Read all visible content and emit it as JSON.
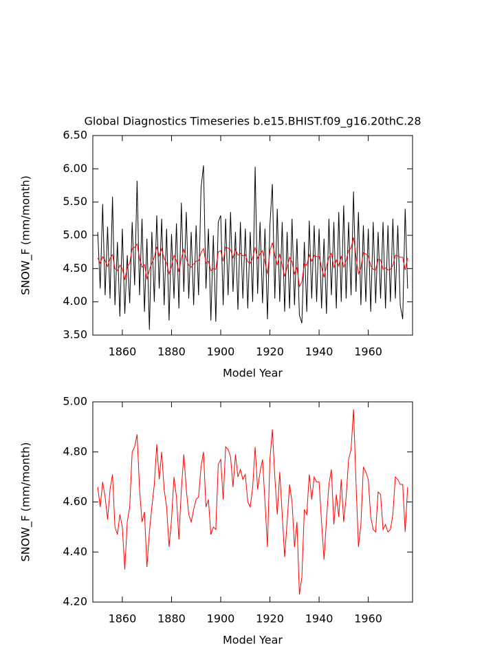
{
  "chart_data": [
    {
      "type": "line",
      "title": "Global Diagnostics Timeseries b.e15.BHIST.f09_g16.20thC.28",
      "xlabel": "Model Year",
      "ylabel": "SNOW_F (mm/month)",
      "xlim": [
        1848,
        1978
      ],
      "xticks": [
        1860,
        1880,
        1900,
        1920,
        1940,
        1960
      ],
      "ylim": [
        3.5,
        6.5
      ],
      "yticks": [
        {
          "value": 3.5,
          "label": "3.50"
        },
        {
          "value": 4.0,
          "label": "4.00"
        },
        {
          "value": 4.5,
          "label": "4.50"
        },
        {
          "value": 5.0,
          "label": "5.00"
        },
        {
          "value": 5.5,
          "label": "5.50"
        },
        {
          "value": 6.0,
          "label": "6.00"
        },
        {
          "value": 6.5,
          "label": "6.50"
        }
      ],
      "x": [
        1850,
        1851,
        1852,
        1853,
        1854,
        1855,
        1856,
        1857,
        1858,
        1859,
        1860,
        1861,
        1862,
        1863,
        1864,
        1865,
        1866,
        1867,
        1868,
        1869,
        1870,
        1871,
        1872,
        1873,
        1874,
        1875,
        1876,
        1877,
        1878,
        1879,
        1880,
        1881,
        1882,
        1883,
        1884,
        1885,
        1886,
        1887,
        1888,
        1889,
        1890,
        1891,
        1892,
        1893,
        1894,
        1895,
        1896,
        1897,
        1898,
        1899,
        1900,
        1901,
        1902,
        1903,
        1904,
        1905,
        1906,
        1907,
        1908,
        1909,
        1910,
        1911,
        1912,
        1913,
        1914,
        1915,
        1916,
        1917,
        1918,
        1919,
        1920,
        1921,
        1922,
        1923,
        1924,
        1925,
        1926,
        1927,
        1928,
        1929,
        1930,
        1931,
        1932,
        1933,
        1934,
        1935,
        1936,
        1937,
        1938,
        1939,
        1940,
        1941,
        1942,
        1943,
        1944,
        1945,
        1946,
        1947,
        1948,
        1949,
        1950,
        1951,
        1952,
        1953,
        1954,
        1955,
        1956,
        1957,
        1958,
        1959,
        1960,
        1961,
        1962,
        1963,
        1964,
        1965,
        1966,
        1967,
        1968,
        1969,
        1970,
        1971,
        1972,
        1973,
        1974,
        1975,
        1976
      ],
      "series": [
        {
          "color": "#000000",
          "values": [
            5.05,
            4.2,
            5.47,
            4.1,
            5.13,
            4.05,
            5.58,
            3.95,
            4.9,
            3.78,
            5.1,
            3.82,
            4.7,
            3.98,
            5.2,
            4.25,
            5.82,
            4.1,
            5.25,
            3.85,
            4.95,
            3.58,
            5.05,
            4.0,
            5.3,
            4.2,
            5.25,
            3.95,
            5.1,
            3.72,
            5.02,
            4.05,
            5.18,
            3.9,
            5.49,
            4.15,
            5.35,
            4.05,
            5.05,
            3.95,
            5.15,
            4.1,
            5.71,
            6.05,
            4.2,
            5.1,
            3.72,
            5.0,
            3.7,
            5.2,
            5.3,
            3.95,
            5.25,
            4.1,
            5.35,
            4.15,
            5.05,
            3.88,
            5.2,
            4.05,
            5.1,
            3.9,
            5.05,
            4.0,
            6.03,
            4.12,
            5.2,
            3.98,
            5.1,
            3.74,
            5.15,
            5.77,
            4.05,
            5.4,
            4.0,
            5.2,
            3.85,
            5.05,
            3.9,
            5.25,
            3.95,
            4.95,
            3.8,
            3.68,
            4.9,
            3.85,
            5.22,
            4.05,
            5.15,
            4.0,
            5.1,
            3.9,
            4.95,
            3.82,
            5.25,
            4.1,
            5.2,
            3.9,
            5.35,
            4.0,
            5.45,
            4.05,
            5.2,
            4.1,
            5.66,
            4.15,
            5.35,
            3.95,
            5.15,
            4.0,
            5.1,
            3.85,
            5.2,
            3.98,
            5.05,
            4.05,
            5.2,
            3.9,
            5.15,
            4.0,
            5.25,
            4.05,
            5.15,
            3.95,
            3.74,
            5.4,
            4.2
          ]
        },
        {
          "color": "#ff0000",
          "values": [
            4.66,
            4.58,
            4.68,
            4.62,
            4.53,
            4.65,
            4.71,
            4.5,
            4.47,
            4.55,
            4.5,
            4.33,
            4.52,
            4.58,
            4.8,
            4.82,
            4.87,
            4.65,
            4.52,
            4.56,
            4.34,
            4.48,
            4.58,
            4.67,
            4.83,
            4.69,
            4.8,
            4.65,
            4.58,
            4.42,
            4.53,
            4.7,
            4.62,
            4.45,
            4.65,
            4.79,
            4.65,
            4.55,
            4.52,
            4.57,
            4.61,
            4.62,
            4.74,
            4.8,
            4.58,
            4.61,
            4.47,
            4.5,
            4.49,
            4.75,
            4.77,
            4.61,
            4.82,
            4.81,
            4.78,
            4.66,
            4.79,
            4.7,
            4.73,
            4.69,
            4.71,
            4.6,
            4.58,
            4.66,
            4.82,
            4.65,
            4.72,
            4.77,
            4.6,
            4.42,
            4.77,
            4.89,
            4.7,
            4.55,
            4.72,
            4.55,
            4.38,
            4.52,
            4.67,
            4.6,
            4.42,
            4.52,
            4.23,
            4.3,
            4.57,
            4.55,
            4.71,
            4.61,
            4.7,
            4.68,
            4.68,
            4.52,
            4.37,
            4.53,
            4.67,
            4.73,
            4.51,
            4.63,
            4.54,
            4.69,
            4.52,
            4.62,
            4.77,
            4.81,
            4.97,
            4.68,
            4.42,
            4.51,
            4.74,
            4.72,
            4.69,
            4.54,
            4.49,
            4.48,
            4.64,
            4.63,
            4.49,
            4.51,
            4.48,
            4.49,
            4.55,
            4.7,
            4.69,
            4.67,
            4.67,
            4.48,
            4.66
          ]
        }
      ]
    },
    {
      "type": "line",
      "xlabel": "Model Year",
      "ylabel": "SNOW_F (mm/month)",
      "xlim": [
        1848,
        1978
      ],
      "xticks": [
        1860,
        1880,
        1900,
        1920,
        1940,
        1960
      ],
      "ylim": [
        4.2,
        5.0
      ],
      "yticks": [
        {
          "value": 4.2,
          "label": "4.20"
        },
        {
          "value": 4.4,
          "label": "4.40"
        },
        {
          "value": 4.6,
          "label": "4.60"
        },
        {
          "value": 4.8,
          "label": "4.80"
        },
        {
          "value": 5.0,
          "label": "5.00"
        }
      ],
      "x": [
        1850,
        1851,
        1852,
        1853,
        1854,
        1855,
        1856,
        1857,
        1858,
        1859,
        1860,
        1861,
        1862,
        1863,
        1864,
        1865,
        1866,
        1867,
        1868,
        1869,
        1870,
        1871,
        1872,
        1873,
        1874,
        1875,
        1876,
        1877,
        1878,
        1879,
        1880,
        1881,
        1882,
        1883,
        1884,
        1885,
        1886,
        1887,
        1888,
        1889,
        1890,
        1891,
        1892,
        1893,
        1894,
        1895,
        1896,
        1897,
        1898,
        1899,
        1900,
        1901,
        1902,
        1903,
        1904,
        1905,
        1906,
        1907,
        1908,
        1909,
        1910,
        1911,
        1912,
        1913,
        1914,
        1915,
        1916,
        1917,
        1918,
        1919,
        1920,
        1921,
        1922,
        1923,
        1924,
        1925,
        1926,
        1927,
        1928,
        1929,
        1930,
        1931,
        1932,
        1933,
        1934,
        1935,
        1936,
        1937,
        1938,
        1939,
        1940,
        1941,
        1942,
        1943,
        1944,
        1945,
        1946,
        1947,
        1948,
        1949,
        1950,
        1951,
        1952,
        1953,
        1954,
        1955,
        1956,
        1957,
        1958,
        1959,
        1960,
        1961,
        1962,
        1963,
        1964,
        1965,
        1966,
        1967,
        1968,
        1969,
        1970,
        1971,
        1972,
        1973,
        1974,
        1975,
        1976
      ],
      "series": [
        {
          "color": "#ff0000",
          "values": [
            4.66,
            4.58,
            4.68,
            4.62,
            4.53,
            4.65,
            4.71,
            4.5,
            4.47,
            4.55,
            4.5,
            4.33,
            4.52,
            4.58,
            4.8,
            4.82,
            4.87,
            4.65,
            4.52,
            4.56,
            4.34,
            4.48,
            4.58,
            4.67,
            4.83,
            4.69,
            4.8,
            4.65,
            4.58,
            4.42,
            4.53,
            4.7,
            4.62,
            4.45,
            4.65,
            4.79,
            4.65,
            4.55,
            4.52,
            4.57,
            4.61,
            4.62,
            4.74,
            4.8,
            4.58,
            4.61,
            4.47,
            4.5,
            4.49,
            4.75,
            4.77,
            4.61,
            4.82,
            4.81,
            4.78,
            4.66,
            4.79,
            4.7,
            4.73,
            4.69,
            4.71,
            4.6,
            4.58,
            4.66,
            4.82,
            4.65,
            4.72,
            4.77,
            4.6,
            4.42,
            4.77,
            4.89,
            4.7,
            4.55,
            4.72,
            4.55,
            4.38,
            4.52,
            4.67,
            4.6,
            4.42,
            4.52,
            4.23,
            4.3,
            4.57,
            4.55,
            4.71,
            4.61,
            4.7,
            4.68,
            4.68,
            4.52,
            4.37,
            4.53,
            4.67,
            4.73,
            4.51,
            4.63,
            4.54,
            4.69,
            4.52,
            4.62,
            4.77,
            4.81,
            4.97,
            4.68,
            4.42,
            4.51,
            4.74,
            4.72,
            4.69,
            4.54,
            4.49,
            4.48,
            4.64,
            4.63,
            4.49,
            4.51,
            4.48,
            4.49,
            4.55,
            4.7,
            4.69,
            4.67,
            4.67,
            4.48,
            4.66
          ]
        }
      ]
    }
  ]
}
